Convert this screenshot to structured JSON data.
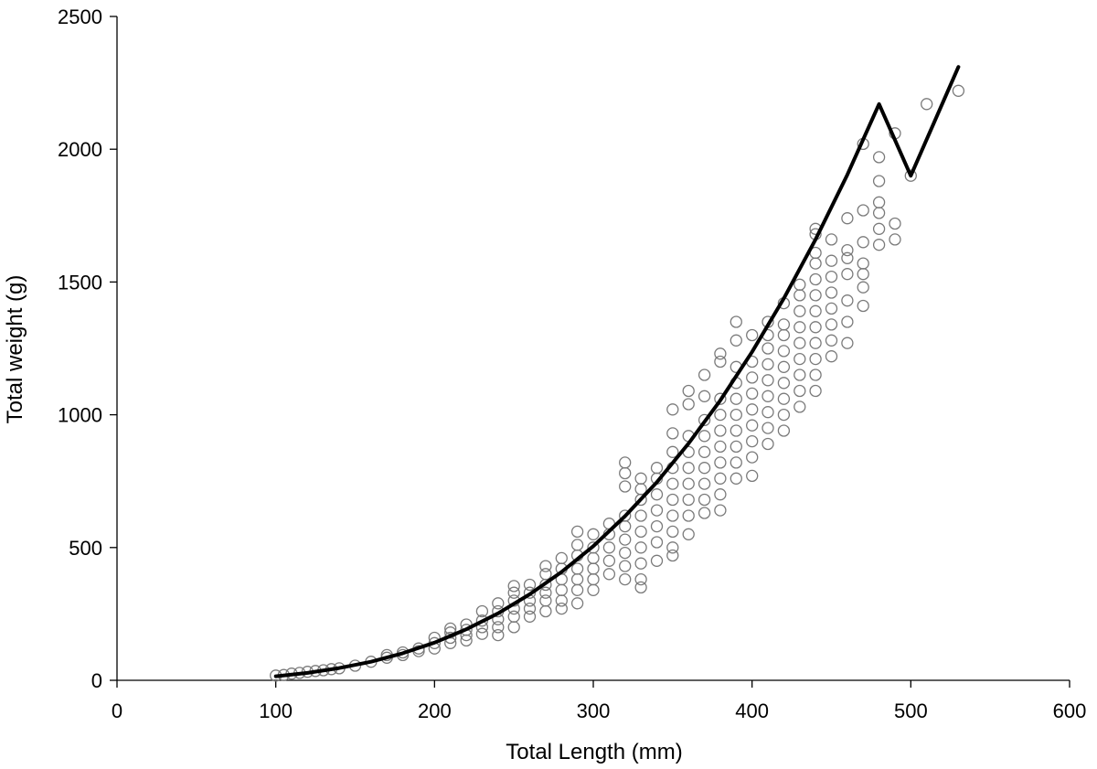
{
  "chart_data": {
    "type": "scatter",
    "xlabel": "Total Length  (mm)",
    "ylabel": "Total weight  (g)",
    "xlim": [
      0,
      600
    ],
    "ylim": [
      0,
      2500
    ],
    "xticks": [
      0,
      100,
      200,
      300,
      400,
      500,
      600
    ],
    "yticks": [
      0,
      500,
      1000,
      1500,
      2000,
      2500
    ],
    "grid": false,
    "legend": "none",
    "marker": "open-circle",
    "marker_color": "#7a7a7a",
    "line_color": "#000000",
    "series": [
      {
        "kind": "points",
        "points": [
          [
            100,
            18
          ],
          [
            105,
            20
          ],
          [
            110,
            25
          ],
          [
            115,
            28
          ],
          [
            120,
            32
          ],
          [
            125,
            35
          ],
          [
            130,
            38
          ],
          [
            135,
            42
          ],
          [
            140,
            45
          ],
          [
            150,
            55
          ],
          [
            160,
            70
          ],
          [
            170,
            85
          ],
          [
            170,
            95
          ],
          [
            180,
            95
          ],
          [
            180,
            105
          ],
          [
            190,
            110
          ],
          [
            190,
            120
          ],
          [
            200,
            120
          ],
          [
            200,
            140
          ],
          [
            200,
            160
          ],
          [
            210,
            140
          ],
          [
            210,
            160
          ],
          [
            210,
            180
          ],
          [
            210,
            195
          ],
          [
            220,
            150
          ],
          [
            220,
            170
          ],
          [
            220,
            190
          ],
          [
            220,
            210
          ],
          [
            230,
            175
          ],
          [
            230,
            200
          ],
          [
            230,
            225
          ],
          [
            230,
            260
          ],
          [
            240,
            170
          ],
          [
            240,
            200
          ],
          [
            240,
            230
          ],
          [
            240,
            260
          ],
          [
            240,
            290
          ],
          [
            250,
            200
          ],
          [
            250,
            240
          ],
          [
            250,
            270
          ],
          [
            250,
            300
          ],
          [
            250,
            330
          ],
          [
            250,
            355
          ],
          [
            260,
            240
          ],
          [
            260,
            270
          ],
          [
            260,
            300
          ],
          [
            260,
            330
          ],
          [
            260,
            360
          ],
          [
            270,
            260
          ],
          [
            270,
            300
          ],
          [
            270,
            330
          ],
          [
            270,
            360
          ],
          [
            270,
            400
          ],
          [
            270,
            430
          ],
          [
            280,
            270
          ],
          [
            280,
            300
          ],
          [
            280,
            340
          ],
          [
            280,
            380
          ],
          [
            280,
            420
          ],
          [
            280,
            460
          ],
          [
            290,
            290
          ],
          [
            290,
            340
          ],
          [
            290,
            380
          ],
          [
            290,
            420
          ],
          [
            290,
            470
          ],
          [
            290,
            510
          ],
          [
            290,
            560
          ],
          [
            300,
            340
          ],
          [
            300,
            380
          ],
          [
            300,
            420
          ],
          [
            300,
            460
          ],
          [
            300,
            500
          ],
          [
            300,
            550
          ],
          [
            310,
            400
          ],
          [
            310,
            450
          ],
          [
            310,
            500
          ],
          [
            310,
            550
          ],
          [
            310,
            590
          ],
          [
            320,
            380
          ],
          [
            320,
            430
          ],
          [
            320,
            480
          ],
          [
            320,
            530
          ],
          [
            320,
            580
          ],
          [
            320,
            620
          ],
          [
            320,
            730
          ],
          [
            320,
            780
          ],
          [
            320,
            820
          ],
          [
            330,
            350
          ],
          [
            330,
            380
          ],
          [
            330,
            440
          ],
          [
            330,
            500
          ],
          [
            330,
            560
          ],
          [
            330,
            620
          ],
          [
            330,
            680
          ],
          [
            330,
            720
          ],
          [
            330,
            760
          ],
          [
            340,
            450
          ],
          [
            340,
            520
          ],
          [
            340,
            580
          ],
          [
            340,
            640
          ],
          [
            340,
            700
          ],
          [
            340,
            760
          ],
          [
            340,
            800
          ],
          [
            350,
            470
          ],
          [
            350,
            500
          ],
          [
            350,
            560
          ],
          [
            350,
            620
          ],
          [
            350,
            680
          ],
          [
            350,
            740
          ],
          [
            350,
            800
          ],
          [
            350,
            860
          ],
          [
            350,
            930
          ],
          [
            350,
            1020
          ],
          [
            360,
            550
          ],
          [
            360,
            620
          ],
          [
            360,
            680
          ],
          [
            360,
            740
          ],
          [
            360,
            800
          ],
          [
            360,
            860
          ],
          [
            360,
            920
          ],
          [
            360,
            1040
          ],
          [
            360,
            1090
          ],
          [
            370,
            630
          ],
          [
            370,
            680
          ],
          [
            370,
            740
          ],
          [
            370,
            800
          ],
          [
            370,
            860
          ],
          [
            370,
            920
          ],
          [
            370,
            980
          ],
          [
            370,
            1070
          ],
          [
            370,
            1150
          ],
          [
            380,
            640
          ],
          [
            380,
            700
          ],
          [
            380,
            760
          ],
          [
            380,
            820
          ],
          [
            380,
            880
          ],
          [
            380,
            940
          ],
          [
            380,
            1000
          ],
          [
            380,
            1060
          ],
          [
            380,
            1200
          ],
          [
            380,
            1230
          ],
          [
            390,
            760
          ],
          [
            390,
            820
          ],
          [
            390,
            880
          ],
          [
            390,
            940
          ],
          [
            390,
            1000
          ],
          [
            390,
            1060
          ],
          [
            390,
            1120
          ],
          [
            390,
            1180
          ],
          [
            390,
            1280
          ],
          [
            390,
            1350
          ],
          [
            400,
            770
          ],
          [
            400,
            840
          ],
          [
            400,
            900
          ],
          [
            400,
            960
          ],
          [
            400,
            1020
          ],
          [
            400,
            1080
          ],
          [
            400,
            1140
          ],
          [
            400,
            1200
          ],
          [
            400,
            1300
          ],
          [
            410,
            890
          ],
          [
            410,
            950
          ],
          [
            410,
            1010
          ],
          [
            410,
            1070
          ],
          [
            410,
            1130
          ],
          [
            410,
            1190
          ],
          [
            410,
            1250
          ],
          [
            410,
            1300
          ],
          [
            410,
            1350
          ],
          [
            420,
            940
          ],
          [
            420,
            1000
          ],
          [
            420,
            1060
          ],
          [
            420,
            1120
          ],
          [
            420,
            1180
          ],
          [
            420,
            1240
          ],
          [
            420,
            1300
          ],
          [
            420,
            1340
          ],
          [
            420,
            1420
          ],
          [
            430,
            1030
          ],
          [
            430,
            1090
          ],
          [
            430,
            1150
          ],
          [
            430,
            1210
          ],
          [
            430,
            1270
          ],
          [
            430,
            1330
          ],
          [
            430,
            1390
          ],
          [
            430,
            1450
          ],
          [
            430,
            1490
          ],
          [
            440,
            1090
          ],
          [
            440,
            1150
          ],
          [
            440,
            1210
          ],
          [
            440,
            1270
          ],
          [
            440,
            1330
          ],
          [
            440,
            1390
          ],
          [
            440,
            1450
          ],
          [
            440,
            1510
          ],
          [
            440,
            1570
          ],
          [
            440,
            1610
          ],
          [
            440,
            1680
          ],
          [
            440,
            1700
          ],
          [
            450,
            1220
          ],
          [
            450,
            1280
          ],
          [
            450,
            1340
          ],
          [
            450,
            1400
          ],
          [
            450,
            1460
          ],
          [
            450,
            1520
          ],
          [
            450,
            1580
          ],
          [
            450,
            1660
          ],
          [
            460,
            1270
          ],
          [
            460,
            1350
          ],
          [
            460,
            1430
          ],
          [
            460,
            1530
          ],
          [
            460,
            1590
          ],
          [
            460,
            1620
          ],
          [
            460,
            1740
          ],
          [
            470,
            1410
          ],
          [
            470,
            1480
          ],
          [
            470,
            1530
          ],
          [
            470,
            1570
          ],
          [
            470,
            1650
          ],
          [
            470,
            1770
          ],
          [
            470,
            2020
          ],
          [
            480,
            1640
          ],
          [
            480,
            1700
          ],
          [
            480,
            1760
          ],
          [
            480,
            1800
          ],
          [
            480,
            1880
          ],
          [
            480,
            1970
          ],
          [
            490,
            1660
          ],
          [
            490,
            1720
          ],
          [
            490,
            2060
          ],
          [
            500,
            1900
          ],
          [
            510,
            2170
          ],
          [
            530,
            2220
          ]
        ]
      },
      {
        "kind": "fit-line",
        "points": [
          [
            100,
            15
          ],
          [
            120,
            28
          ],
          [
            140,
            46
          ],
          [
            160,
            70
          ],
          [
            180,
            102
          ],
          [
            200,
            142
          ],
          [
            220,
            192
          ],
          [
            240,
            252
          ],
          [
            260,
            324
          ],
          [
            280,
            408
          ],
          [
            300,
            505
          ],
          [
            320,
            618
          ],
          [
            340,
            746
          ],
          [
            360,
            892
          ],
          [
            380,
            1054
          ],
          [
            400,
            1237
          ],
          [
            420,
            1438
          ],
          [
            440,
            1660
          ],
          [
            460,
            1904
          ],
          [
            480,
            2170
          ],
          [
            500,
            1900
          ],
          [
            530,
            2310
          ]
        ]
      }
    ]
  }
}
